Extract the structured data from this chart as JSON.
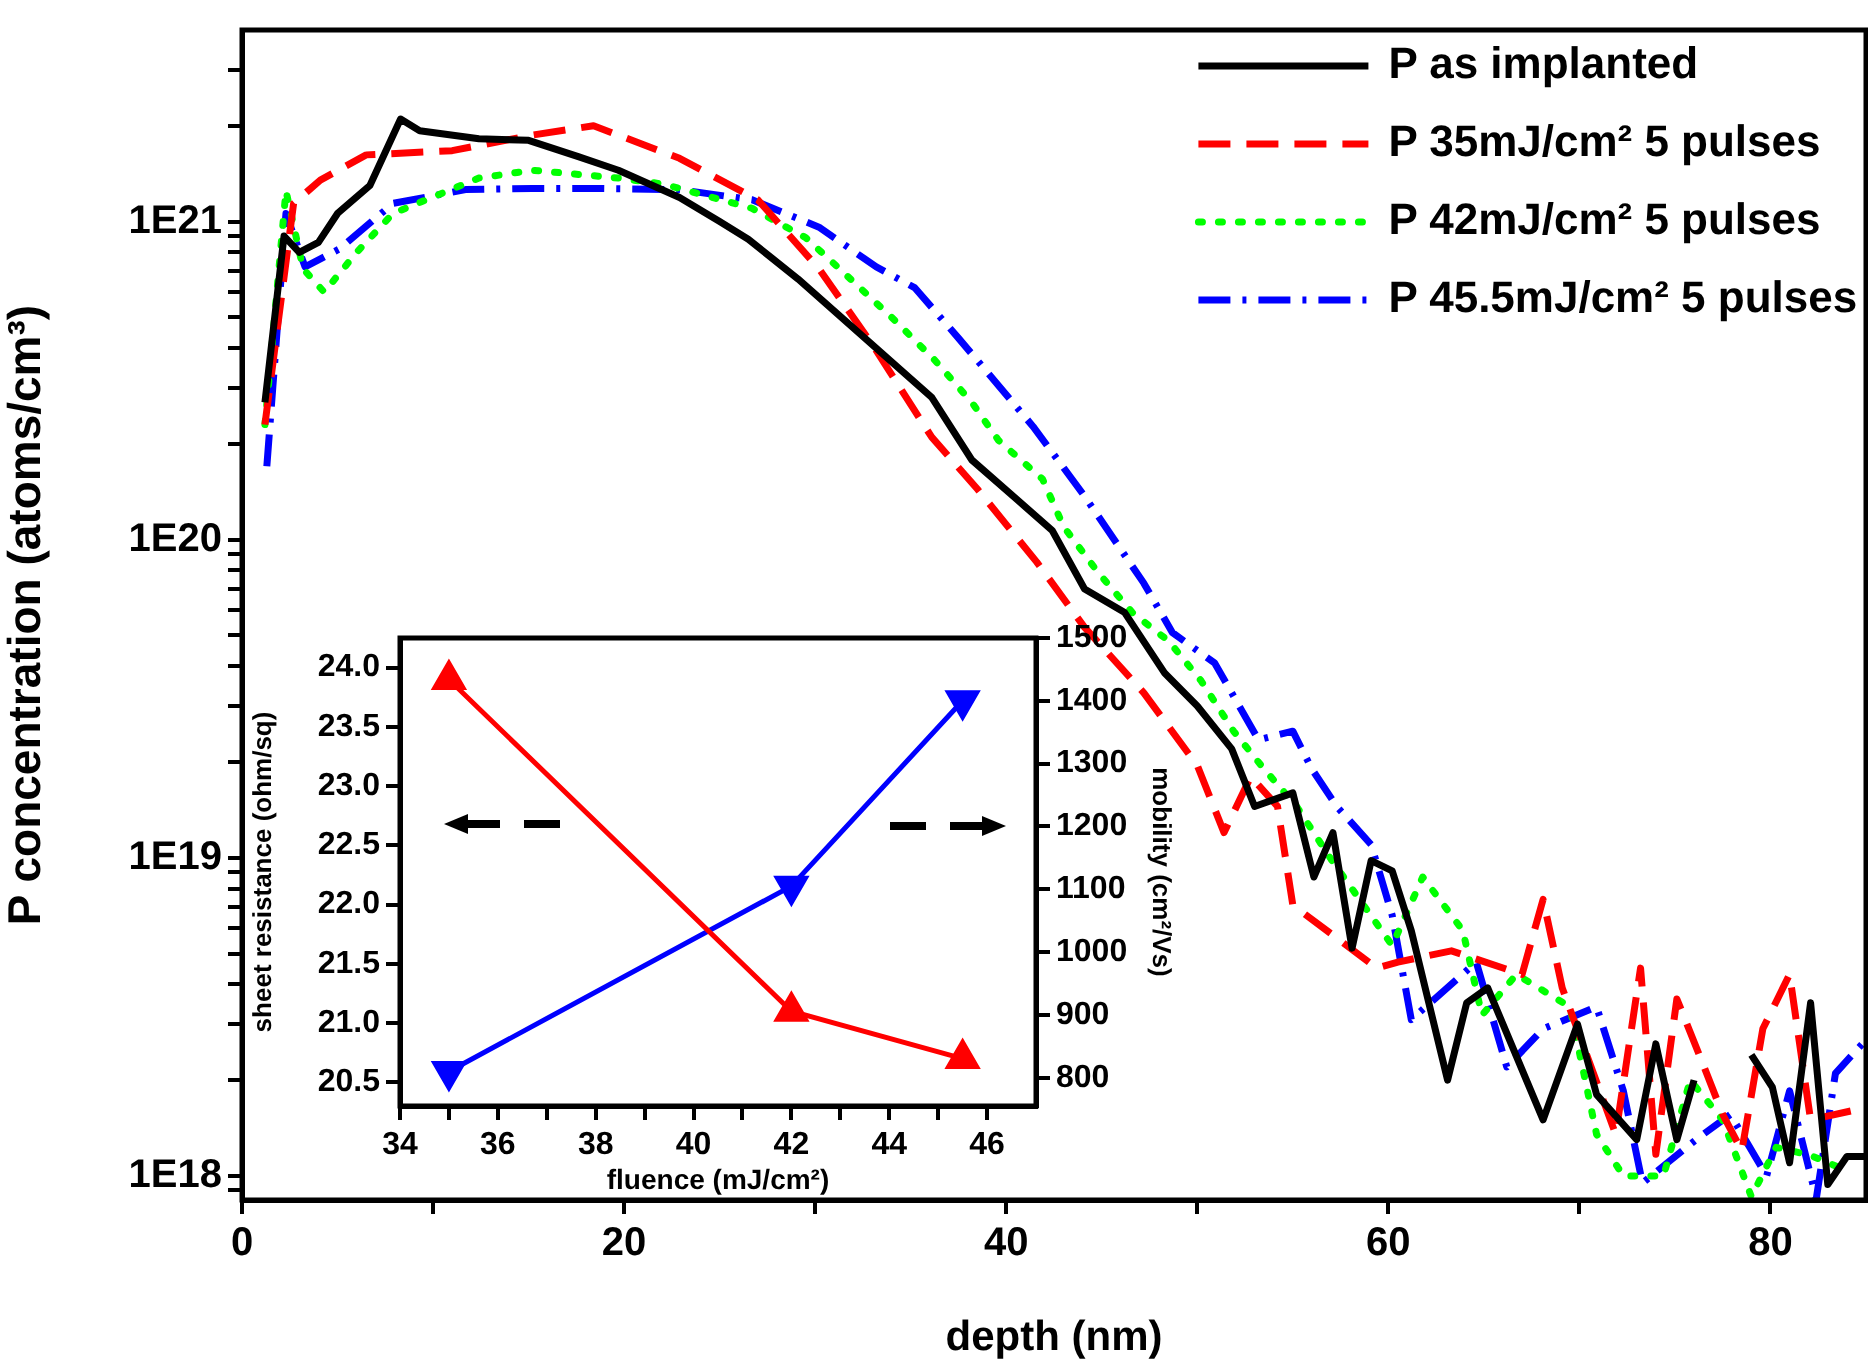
{
  "chart_data": [
    {
      "type": "line",
      "xlabel": "depth (nm)",
      "ylabel": "P concentration (atoms/cm³)",
      "log": "y",
      "xlim": [
        0,
        85
      ],
      "ylim": [
        8.4e+17,
        4e+21
      ],
      "xticks": [
        0,
        {
          "value": 10,
          "label": null
        },
        20,
        {
          "value": 30,
          "label": null
        },
        40,
        {
          "value": 50,
          "label": null
        },
        60,
        {
          "value": 70,
          "label": null
        },
        80
      ],
      "yticks": [
        {
          "value": 9e+17,
          "label": null
        },
        {
          "value": 1e+18,
          "label": "1E18"
        },
        {
          "value": 2e+18,
          "label": null
        },
        {
          "value": 3e+18,
          "label": null
        },
        {
          "value": 4e+18,
          "label": null
        },
        {
          "value": 5e+18,
          "label": null
        },
        {
          "value": 6e+18,
          "label": null
        },
        {
          "value": 7e+18,
          "label": null
        },
        {
          "value": 8e+18,
          "label": null
        },
        {
          "value": 9e+18,
          "label": null
        },
        {
          "value": 1e+19,
          "label": "1E19"
        },
        {
          "value": 2e+19,
          "label": null
        },
        {
          "value": 3e+19,
          "label": null
        },
        {
          "value": 4e+19,
          "label": null
        },
        {
          "value": 5e+19,
          "label": null
        },
        {
          "value": 6e+19,
          "label": null
        },
        {
          "value": 7e+19,
          "label": null
        },
        {
          "value": 8e+19,
          "label": null
        },
        {
          "value": 9e+19,
          "label": null
        },
        {
          "value": 1e+20,
          "label": "1E20"
        },
        {
          "value": 2e+20,
          "label": null
        },
        {
          "value": 3e+20,
          "label": null
        },
        {
          "value": 4e+20,
          "label": null
        },
        {
          "value": 5e+20,
          "label": null
        },
        {
          "value": 6e+20,
          "label": null
        },
        {
          "value": 7e+20,
          "label": null
        },
        {
          "value": 8e+20,
          "label": null
        },
        {
          "value": 9e+20,
          "label": null
        },
        {
          "value": 1e+21,
          "label": "1E21"
        },
        {
          "value": 2e+21,
          "label": null
        },
        {
          "value": 3e+21,
          "label": null
        }
      ],
      "grid": false,
      "legend": "top right",
      "marker": "none",
      "series": [
        {
          "name": "P as implanted",
          "color": "#000000",
          "line_style": "solid",
          "x": [
            1.2,
            2.2,
            3,
            4,
            5,
            6.7,
            8.3,
            9.3,
            12.4,
            15,
            17.6,
            19.7,
            22.9,
            25,
            26.5,
            29.1,
            32.6,
            36.1,
            38.2,
            42.4,
            44.1,
            46.2,
            48.3,
            50,
            51.8,
            53,
            55,
            56.1,
            57.1,
            58.1,
            59.1,
            60.2,
            61.2,
            63.1,
            64.1,
            65.2,
            68.1,
            69.9,
            70.9,
            73,
            74,
            75.1,
            76,
            77,
            79,
            80.1,
            81,
            82.1,
            83,
            84,
            84.9
          ],
          "values": [
            2.7e+20,
            9e+20,
            8e+20,
            8.6e+20,
            1.06e+21,
            1.3e+21,
            2.1e+21,
            1.93e+21,
            1.82e+21,
            1.8e+21,
            1.6e+21,
            1.45e+21,
            1.19e+21,
            1e+21,
            8.8e+20,
            6.6e+20,
            4.3e+20,
            2.8e+20,
            1.78e+20,
            1.07e+20,
            7e+19,
            5.9e+19,
            3.8e+19,
            3e+19,
            2.2e+19,
            1.45e+19,
            1.6e+19,
            8.7e+18,
            1.2e+19,
            5.2e+18,
            9.8e+18,
            9.1e+18,
            5.9e+18,
            2e+18,
            3.5e+18,
            3.9e+18,
            1.5e+18,
            3e+18,
            1.8e+18,
            1.3e+18,
            2.6e+18,
            1.3e+18,
            2e+18,
            null,
            2.4e+18,
            1.9e+18,
            1.1e+18,
            3.5e+18,
            9.4e+17,
            1.15e+18,
            1.15e+18
          ]
        },
        {
          "name": "P 35mJ/cm² 5 pulses",
          "color": "#ff0000",
          "line_style": "dashed",
          "x": [
            1.2,
            2.7,
            4.1,
            6.5,
            11,
            15.2,
            18.4,
            22.9,
            27,
            30.2,
            33,
            36.1,
            38.5,
            41.6,
            44.1,
            47.2,
            50,
            51.4,
            52.8,
            54.2,
            55,
            59.4,
            60.5,
            63.3,
            67,
            68.1,
            69.1,
            71.9,
            73.2,
            74,
            75.1,
            76.4,
            77.5,
            78.5,
            79.6,
            81,
            82.1,
            84.2
          ],
          "values": [
            2.3e+20,
            1.14e+21,
            1.35e+21,
            1.62e+21,
            1.67e+21,
            1.87e+21,
            2e+21,
            1.58e+21,
            1.17e+21,
            7.1e+20,
            4.1e+20,
            2.1e+20,
            1.44e+20,
            8.5e+19,
            5.3e+19,
            3.3e+19,
            1.95e+19,
            1.2e+19,
            1.8e+19,
            1.45e+19,
            7.1e+18,
            4.5e+18,
            4.7e+18,
            5.1e+18,
            4.3e+18,
            7.4e+18,
            3.9e+18,
            1.35e+18,
            4.5e+18,
            1.17e+18,
            3.6e+18,
            2.3e+18,
            1.56e+18,
            1.2e+18,
            2.9e+18,
            4.3e+18,
            1.5e+18,
            1.6e+18
          ]
        },
        {
          "name": "P 42mJ/cm² 5 pulses",
          "color": "#00ff00",
          "line_style": "dotted",
          "x": [
            1.2,
            2.3,
            3.2,
            4.3,
            6,
            7.9,
            12.4,
            15.2,
            19.7,
            22.1,
            26.7,
            29.5,
            31.5,
            34,
            36.2,
            38.2,
            39.6,
            41.9,
            43,
            44.8,
            46.6,
            48.5,
            50.2,
            51.9,
            53.5,
            55.2,
            57,
            60.2,
            61.8,
            63.9,
            64.9,
            66.7,
            69.5,
            70.9,
            72.3,
            74.4,
            75.8,
            77.5,
            79,
            80.3,
            82.1,
            83.8
          ],
          "values": [
            2.3e+20,
            1.25e+21,
            7.1e+20,
            6e+20,
            8e+20,
            1.06e+21,
            1.37e+21,
            1.45e+21,
            1.37e+21,
            1.31e+21,
            1.1e+21,
            8.9e+20,
            6.9e+20,
            5e+20,
            3.7e+20,
            2.7e+20,
            2.05e+20,
            1.55e+20,
            1.1e+20,
            7.9e+19,
            5.9e+19,
            4.8e+19,
            3.6e+19,
            2.5e+19,
            1.9e+19,
            1.45e+19,
            9.9e+18,
            5.3e+18,
            8.7e+18,
            5.9e+18,
            3.2e+18,
            4.3e+18,
            3.4e+18,
            1.35e+18,
            1e+18,
            1e+18,
            2e+18,
            1.5e+18,
            8.6e+17,
            1.23e+18,
            1.16e+18,
            1.05e+18
          ]
        },
        {
          "name": "P 45.5mJ/cm² 5 pulses",
          "color": "#0000ff",
          "line_style": "dashdot",
          "x": [
            1.3,
            2.3,
            3.3,
            5.1,
            7.9,
            11.7,
            15.2,
            18.7,
            22.9,
            26.7,
            30.2,
            33.2,
            35.2,
            37.5,
            41.4,
            44.1,
            47.2,
            48.7,
            50.9,
            51.8,
            53.2,
            55,
            56,
            57.3,
            59.1,
            60.2,
            61.2,
            64.6,
            66.2,
            68.1,
            70.9,
            72.3,
            73.3,
            76.1,
            77.9,
            79.8,
            81,
            82.4,
            83.4,
            84.8
          ],
          "values": [
            1.7e+20,
            1.06e+21,
            7.2e+20,
            8.2e+20,
            1.14e+21,
            1.26e+21,
            1.27e+21,
            1.27e+21,
            1.26e+21,
            1.17e+21,
            9.6e+20,
            7.2e+20,
            6.2e+20,
            4.3e+20,
            2.27e+20,
            1.37e+20,
            7.3e+19,
            5.1e+19,
            4.1e+19,
            3.3e+19,
            2.35e+19,
            2.5e+19,
            1.9e+19,
            1.45e+19,
            1.1e+19,
            6.6e+18,
            3.1e+18,
            4.7e+18,
            2.2e+18,
            2.9e+18,
            3.4e+18,
            1.85e+18,
            9.5e+17,
            1.3e+18,
            1.56e+18,
            1e+18,
            1.85e+18,
            8.5e+17,
            2.1e+18,
            2.6e+18
          ]
        }
      ]
    },
    {
      "type": "line",
      "xlabel": "fluence (mJ/cm²)",
      "ylabel": "sheet resistance (ohm/sq)",
      "y2label": "mobility (cm²/Vs)",
      "x": [
        35,
        42,
        45.5
      ],
      "xlim": [
        34,
        47
      ],
      "xticks": [
        34,
        {
          "value": 35,
          "label": null
        },
        36,
        {
          "value": 37,
          "label": null
        },
        38,
        {
          "value": 39,
          "label": null
        },
        40,
        {
          "value": 41,
          "label": null
        },
        42,
        {
          "value": 43,
          "label": null
        },
        44,
        {
          "value": 45,
          "label": null
        },
        46
      ],
      "ylim": [
        20.3,
        24.25
      ],
      "yticks": [
        20.5,
        {
          "value": 21,
          "label": "21.0"
        },
        21.5,
        {
          "value": 22,
          "label": "22.0"
        },
        22.5,
        {
          "value": 23,
          "label": "23.0"
        },
        23.5,
        {
          "value": 24,
          "label": "24.0"
        }
      ],
      "y2lim": [
        755,
        1500
      ],
      "y2ticks": [
        800,
        900,
        1000,
        1100,
        1200,
        1300,
        1400,
        1500
      ],
      "grid": false,
      "series": [
        {
          "color": "#ff0000",
          "marker": "triangle",
          "values": [
            23.9,
            21.1,
            20.7
          ]
        },
        {
          "color": "#0000ff",
          "marker": "triangle",
          "axis": "y2",
          "values": [
            810,
            1105,
            1400
          ]
        }
      ]
    }
  ]
}
